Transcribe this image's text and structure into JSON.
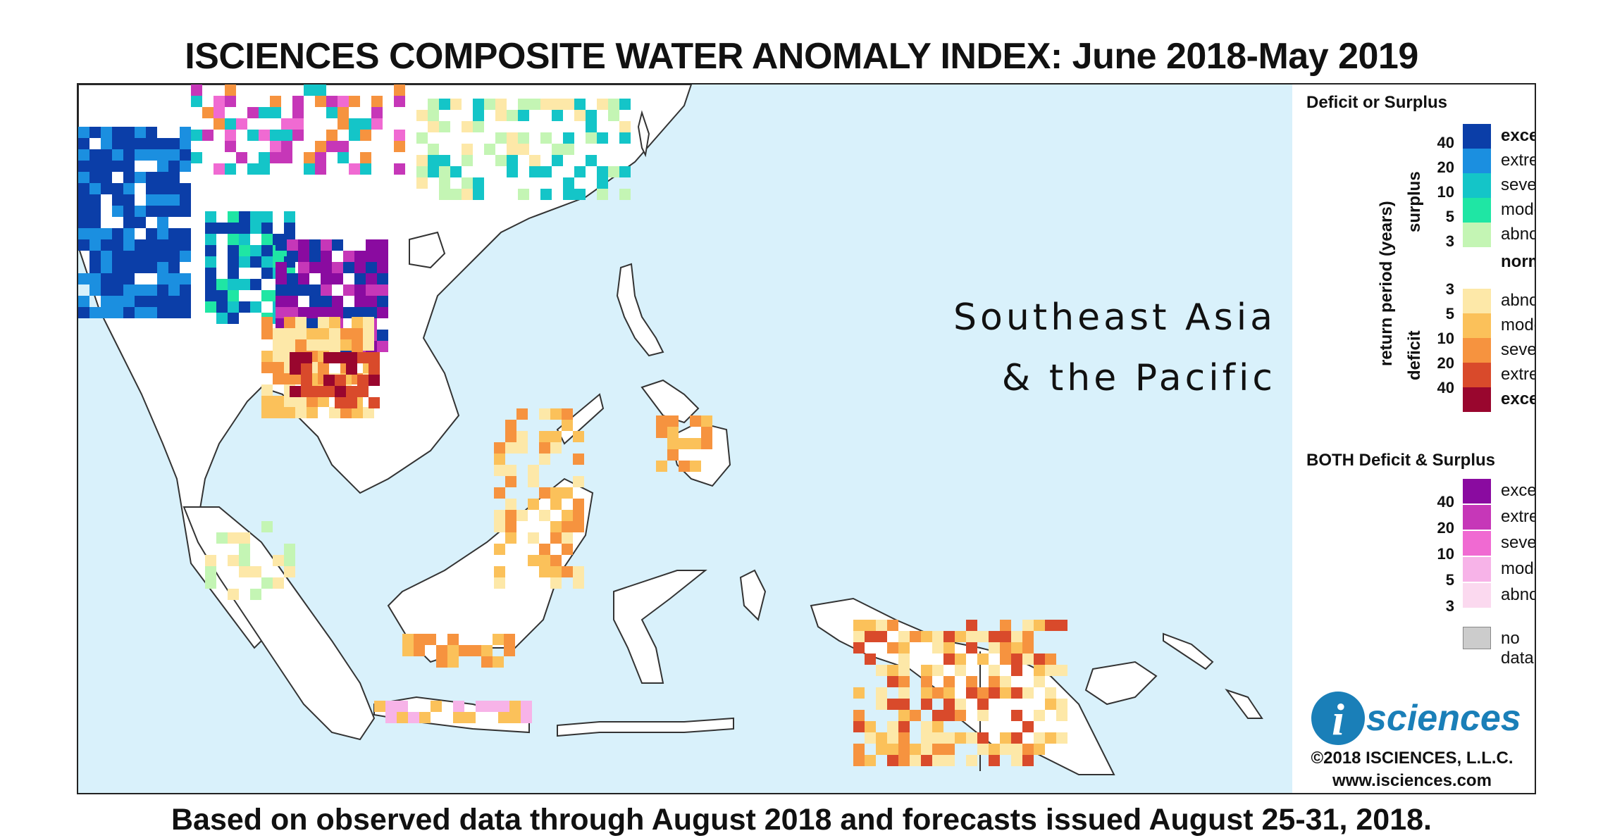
{
  "title": "ISCIENCES COMPOSITE WATER ANOMALY INDEX: June 2018-May 2019",
  "footer": "Based on observed data through August 2018 and forecasts issued August 25-31, 2018.",
  "map": {
    "region_line1": "Southeast Asia",
    "region_line2": "& the Pacific"
  },
  "legend": {
    "heading_main": "Deficit or Surplus",
    "axis_label": "return period (years)",
    "surplus_label": "surplus",
    "deficit_label": "deficit",
    "normal_label": "normal",
    "surplus_items": [
      {
        "label": "exceptional",
        "color": "#0b3ea8",
        "bold": true
      },
      {
        "label": "extreme",
        "color": "#1b8fe0",
        "bold": false
      },
      {
        "label": "severe",
        "color": "#14c5c8",
        "bold": false
      },
      {
        "label": "moderate",
        "color": "#1fe6a4",
        "bold": false
      },
      {
        "label": "abnormal",
        "color": "#c4f5b4",
        "bold": false
      }
    ],
    "surplus_ticks": [
      "40",
      "20",
      "10",
      "5",
      "3"
    ],
    "deficit_items": [
      {
        "label": "abnormal",
        "color": "#fde8a8",
        "bold": false
      },
      {
        "label": "moderate",
        "color": "#fbc15a",
        "bold": false
      },
      {
        "label": "severe",
        "color": "#f6933f",
        "bold": false
      },
      {
        "label": "extreme",
        "color": "#d94a2b",
        "bold": false
      },
      {
        "label": "exceptional",
        "color": "#99062e",
        "bold": true
      }
    ],
    "deficit_ticks": [
      "3",
      "5",
      "10",
      "20",
      "40"
    ],
    "heading_both": "BOTH Deficit & Surplus",
    "both_items": [
      {
        "label": "exceptional",
        "color": "#8a0ba0"
      },
      {
        "label": "extreme",
        "color": "#c637b8"
      },
      {
        "label": "severe",
        "color": "#f06ad2"
      },
      {
        "label": "moderate",
        "color": "#f7b3e8"
      },
      {
        "label": "abnormal",
        "color": "#fbd9ef"
      }
    ],
    "both_ticks": [
      "40",
      "20",
      "10",
      "5",
      "3"
    ],
    "no_data_label": "no data",
    "no_data_color": "#cccccc"
  },
  "branding": {
    "logo_letter": "i",
    "logo_text": "sciences",
    "copyright": "©2018 ISCIENCES, L.L.C.",
    "website": "www.isciences.com"
  },
  "colors": {
    "ocean": "#d9f1fb",
    "land_normal": "#ffffff",
    "logo_blue": "#1a7fb8"
  }
}
